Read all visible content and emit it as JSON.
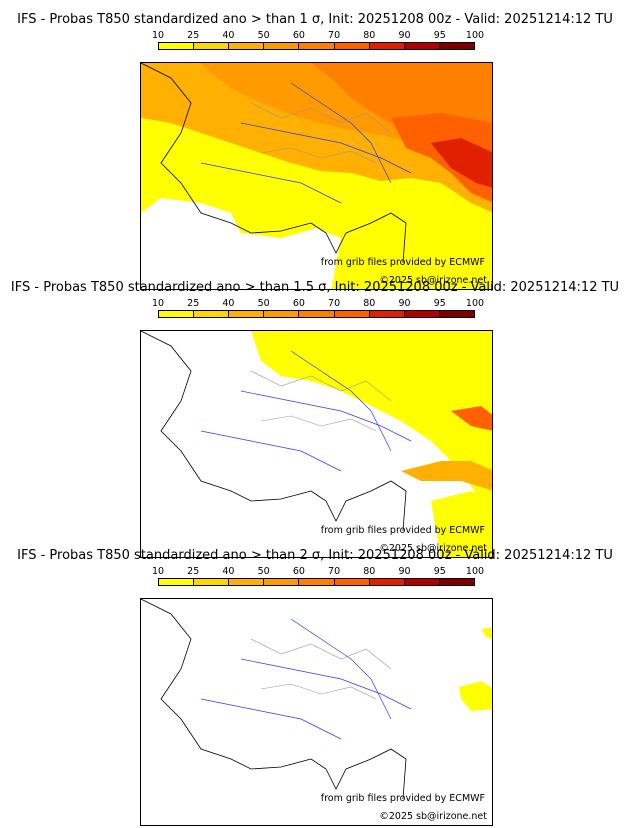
{
  "colorbar": {
    "labels": [
      "10",
      "25",
      "40",
      "50",
      "60",
      "70",
      "80",
      "90",
      "95",
      "100"
    ],
    "colors": [
      "#ffff00",
      "#ffd700",
      "#ffb000",
      "#ff9a00",
      "#ff8000",
      "#ff6000",
      "#e02000",
      "#b00000",
      "#800000"
    ]
  },
  "credits": {
    "source": "from grib files provided by ECMWF",
    "copyright": "©2025 sb@irizone.net"
  },
  "panels": [
    {
      "title": "IFS - Probas T850  standardized ano > than 1 σ, Init: 20251208 00z - Valid: 20251214:12 TU",
      "coverage": "high"
    },
    {
      "title": "IFS - Probas T850  standardized ano > than 1.5 σ, Init: 20251208 00z - Valid: 20251214:12 TU",
      "coverage": "medium"
    },
    {
      "title": "IFS - Probas T850  standardized ano > than 2 σ, Init: 20251208 00z - Valid: 20251214:12 TU",
      "coverage": "low"
    }
  ]
}
